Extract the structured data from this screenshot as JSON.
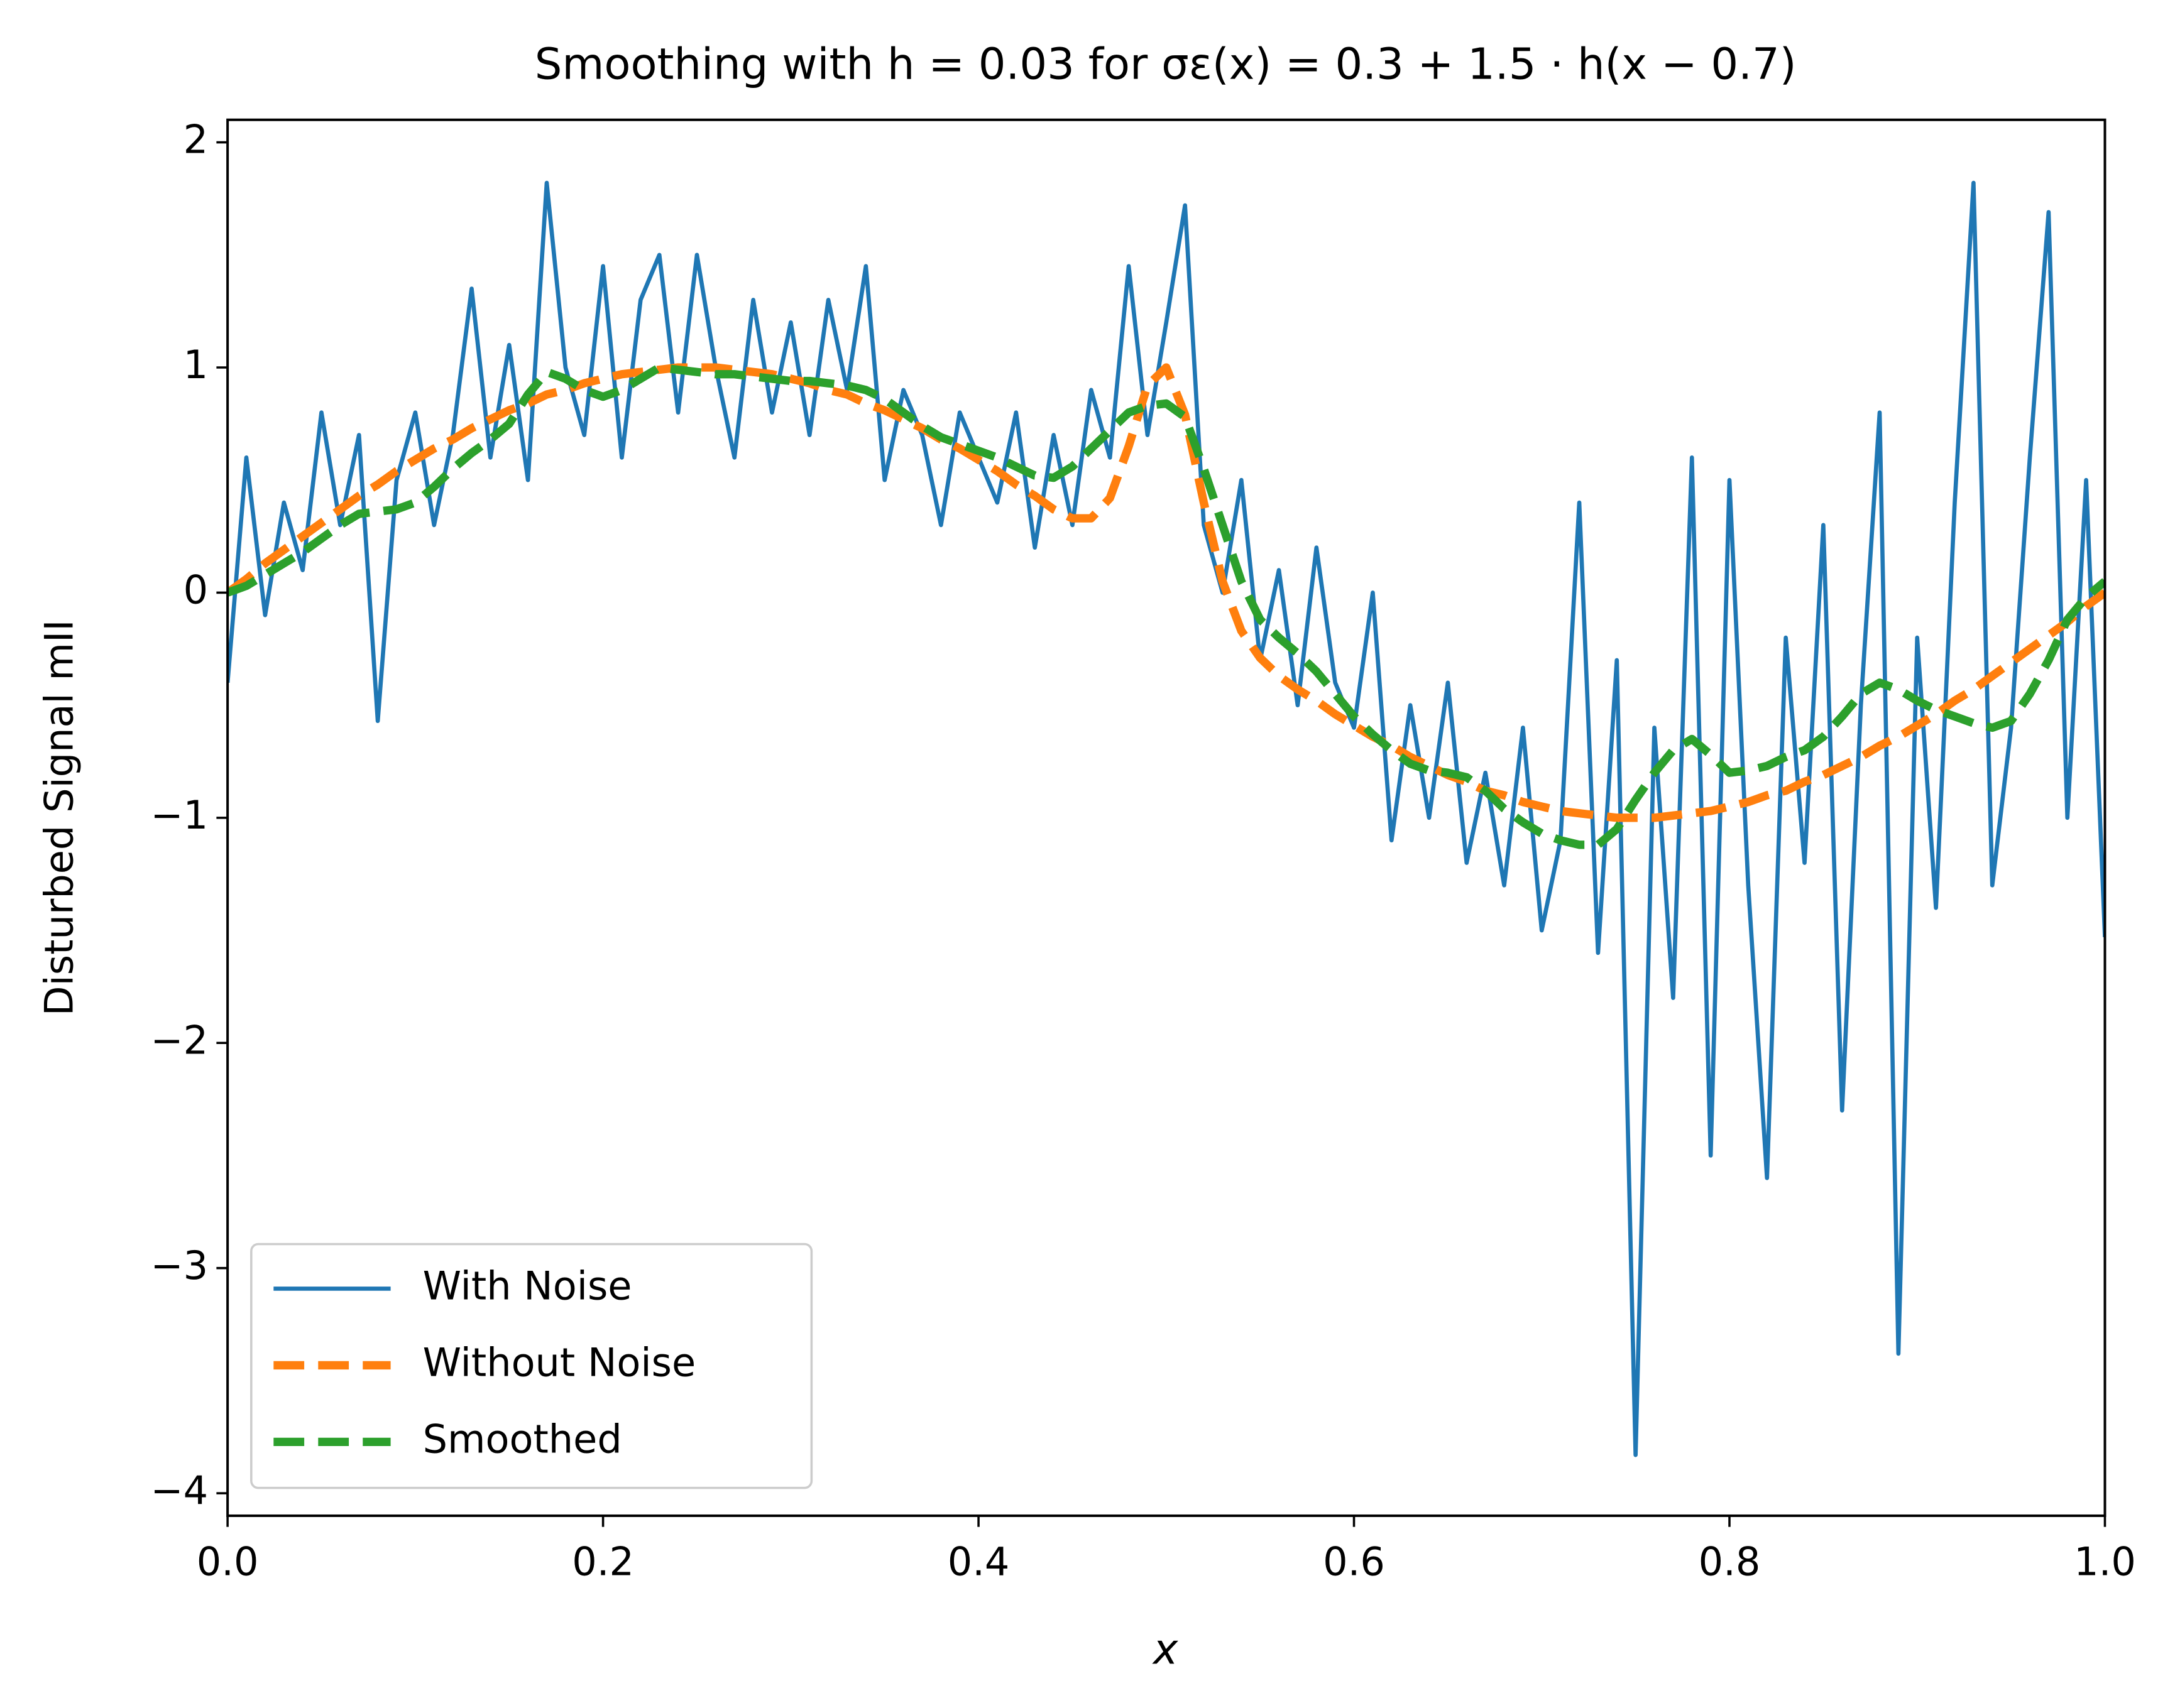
{
  "chart_data": {
    "type": "line",
    "title": "Smoothing with h = 0.03 for σε(x) = 0.3 + 1.5 · h(x − 0.7)",
    "xlabel": "x",
    "ylabel": "Disturbed Signal mII",
    "x": [
      0,
      0.01,
      0.02,
      0.03,
      0.04,
      0.05,
      0.06,
      0.07,
      0.08,
      0.09,
      0.1,
      0.11,
      0.12,
      0.13,
      0.14,
      0.15,
      0.16,
      0.17,
      0.18,
      0.19,
      0.2,
      0.21,
      0.22,
      0.23,
      0.24,
      0.25,
      0.26,
      0.27,
      0.28,
      0.29,
      0.3,
      0.31,
      0.32,
      0.33,
      0.34,
      0.35,
      0.36,
      0.37,
      0.38,
      0.39,
      0.4,
      0.41,
      0.42,
      0.43,
      0.44,
      0.45,
      0.46,
      0.47,
      0.48,
      0.49,
      0.5,
      0.51,
      0.52,
      0.53,
      0.54,
      0.55,
      0.56,
      0.57,
      0.58,
      0.59,
      0.6,
      0.61,
      0.62,
      0.63,
      0.64,
      0.65,
      0.66,
      0.67,
      0.68,
      0.69,
      0.7,
      0.71,
      0.72,
      0.73,
      0.74,
      0.75,
      0.76,
      0.77,
      0.78,
      0.79,
      0.8,
      0.81,
      0.82,
      0.83,
      0.84,
      0.85,
      0.86,
      0.87,
      0.88,
      0.89,
      0.9,
      0.91,
      0.92,
      0.93,
      0.94,
      0.95,
      0.96,
      0.97,
      0.98,
      0.99,
      1
    ],
    "series": [
      {
        "name": "With Noise",
        "color": "#1f77b4",
        "dashed": false,
        "values": [
          -0.4,
          0.6,
          -0.1,
          0.4,
          0.1,
          0.8,
          0.3,
          0.7,
          -0.57,
          0.5,
          0.8,
          0.3,
          0.7,
          1.35,
          0.6,
          1.1,
          0.5,
          1.82,
          1.0,
          0.7,
          1.45,
          0.6,
          1.3,
          1.5,
          0.8,
          1.5,
          1.0,
          0.6,
          1.3,
          0.8,
          1.2,
          0.7,
          1.3,
          0.9,
          1.45,
          0.5,
          0.9,
          0.7,
          0.3,
          0.8,
          0.6,
          0.4,
          0.8,
          0.2,
          0.7,
          0.3,
          0.9,
          0.6,
          1.45,
          0.7,
          1.2,
          1.72,
          0.3,
          0.0,
          0.5,
          -0.3,
          0.1,
          -0.5,
          0.2,
          -0.4,
          -0.6,
          0.0,
          -1.1,
          -0.5,
          -1.0,
          -0.4,
          -1.2,
          -0.8,
          -1.3,
          -0.6,
          -1.5,
          -1.1,
          0.4,
          -1.6,
          -0.3,
          -3.83,
          -0.6,
          -1.8,
          0.6,
          -2.5,
          0.5,
          -1.3,
          -2.6,
          -0.2,
          -1.2,
          0.3,
          -2.3,
          -0.5,
          0.8,
          -3.38,
          -0.2,
          -1.4,
          0.4,
          1.82,
          -1.3,
          -0.6,
          0.6,
          1.69,
          -1.0,
          0.5,
          -1.53
        ]
      },
      {
        "name": "Without Noise",
        "color": "#ff7f0e",
        "dashed": true,
        "values": [
          0,
          0.06,
          0.13,
          0.19,
          0.25,
          0.31,
          0.37,
          0.43,
          0.48,
          0.54,
          0.59,
          0.64,
          0.68,
          0.73,
          0.77,
          0.81,
          0.84,
          0.88,
          0.9,
          0.93,
          0.95,
          0.97,
          0.98,
          0.99,
          1,
          1,
          1,
          0.99,
          0.98,
          0.97,
          0.95,
          0.93,
          0.9,
          0.88,
          0.84,
          0.81,
          0.77,
          0.73,
          0.68,
          0.64,
          0.59,
          0.54,
          0.48,
          0.43,
          0.37,
          0.33,
          0.33,
          0.42,
          0.65,
          0.92,
          1,
          0.79,
          0.4,
          0.05,
          -0.17,
          -0.29,
          -0.37,
          -0.43,
          -0.48,
          -0.54,
          -0.59,
          -0.64,
          -0.68,
          -0.73,
          -0.77,
          -0.81,
          -0.84,
          -0.88,
          -0.9,
          -0.93,
          -0.95,
          -0.97,
          -0.98,
          -0.99,
          -1,
          -1,
          -1,
          -0.99,
          -0.98,
          -0.97,
          -0.95,
          -0.93,
          -0.9,
          -0.88,
          -0.84,
          -0.81,
          -0.77,
          -0.73,
          -0.68,
          -0.64,
          -0.59,
          -0.54,
          -0.48,
          -0.43,
          -0.37,
          -0.31,
          -0.25,
          -0.19,
          -0.13,
          -0.06,
          0
        ]
      },
      {
        "name": "Smoothed",
        "color": "#2ca02c",
        "dashed": true,
        "values": [
          0,
          0.03,
          0.08,
          0.13,
          0.18,
          0.24,
          0.3,
          0.35,
          0.36,
          0.37,
          0.4,
          0.47,
          0.55,
          0.62,
          0.68,
          0.75,
          0.88,
          0.98,
          0.95,
          0.9,
          0.87,
          0.9,
          0.95,
          1.0,
          0.99,
          0.98,
          0.97,
          0.97,
          0.96,
          0.95,
          0.94,
          0.94,
          0.93,
          0.92,
          0.9,
          0.86,
          0.8,
          0.74,
          0.69,
          0.66,
          0.63,
          0.6,
          0.56,
          0.52,
          0.51,
          0.56,
          0.64,
          0.72,
          0.8,
          0.83,
          0.84,
          0.78,
          0.55,
          0.3,
          0.05,
          -0.12,
          -0.2,
          -0.27,
          -0.35,
          -0.45,
          -0.55,
          -0.63,
          -0.7,
          -0.76,
          -0.79,
          -0.8,
          -0.82,
          -0.88,
          -0.96,
          -1.02,
          -1.07,
          -1.1,
          -1.12,
          -1.12,
          -1.05,
          -0.92,
          -0.8,
          -0.7,
          -0.65,
          -0.72,
          -0.8,
          -0.79,
          -0.77,
          -0.73,
          -0.7,
          -0.64,
          -0.55,
          -0.45,
          -0.4,
          -0.43,
          -0.48,
          -0.52,
          -0.55,
          -0.58,
          -0.6,
          -0.57,
          -0.45,
          -0.3,
          -0.12,
          -0.02,
          0.05
        ]
      }
    ],
    "xlim": [
      0,
      1
    ],
    "ylim": [
      -4.1,
      2.1
    ],
    "xticks": [
      {
        "value": 0,
        "label": "0.0"
      },
      0.2,
      0.4,
      0.6,
      0.8,
      {
        "value": 1,
        "label": "1.0"
      }
    ],
    "yticks": [
      {
        "value": -4,
        "label": "−4"
      },
      {
        "value": -3,
        "label": "−3"
      },
      {
        "value": -2,
        "label": "−2"
      },
      {
        "value": -1,
        "label": "−1"
      },
      0,
      1,
      2
    ],
    "grid": false,
    "legend": "lower left"
  }
}
